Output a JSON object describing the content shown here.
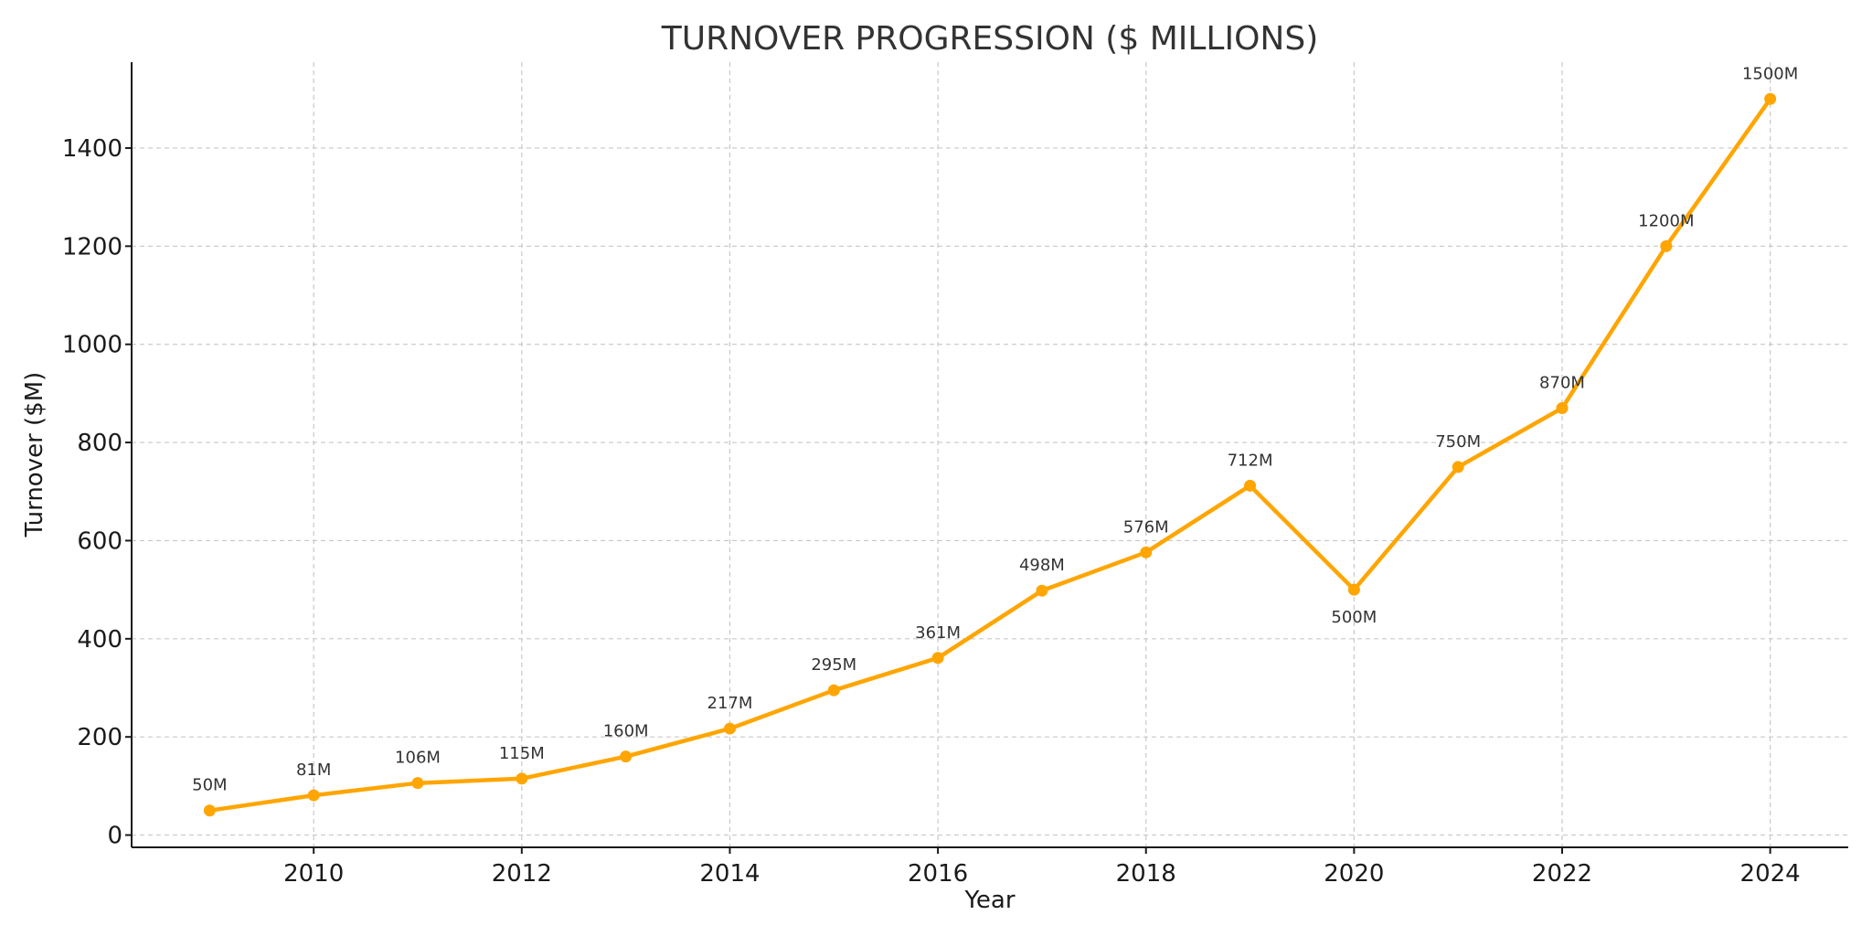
{
  "chart_data": {
    "type": "line",
    "title": "TURNOVER PROGRESSION ($ MILLIONS)",
    "xlabel": "Year",
    "ylabel": "Turnover ($M)",
    "x": [
      2009,
      2010,
      2011,
      2012,
      2013,
      2014,
      2015,
      2016,
      2017,
      2018,
      2019,
      2020,
      2021,
      2022,
      2023,
      2024
    ],
    "series": [
      {
        "values": [
          50,
          81,
          106,
          115,
          160,
          217,
          295,
          361,
          498,
          576,
          712,
          500,
          750,
          870,
          1200,
          1500
        ],
        "labels": [
          "50M",
          "81M",
          "106M",
          "115M",
          "160M",
          "217M",
          "295M",
          "361M",
          "498M",
          "576M",
          "712M",
          "500M",
          "750M",
          "870M",
          "1200M",
          "1500M"
        ],
        "color": "#FFA500"
      }
    ],
    "xlim": [
      2008.25,
      2024.75
    ],
    "ylim": [
      -25,
      1575
    ],
    "xticks": [
      "2010",
      "2012",
      "2014",
      "2016",
      "2018",
      "2020",
      "2022",
      "2024"
    ],
    "yticks": [
      "0",
      "200",
      "400",
      "600",
      "800",
      "1000",
      "1200",
      "1400"
    ],
    "grid": true,
    "legend": "none"
  }
}
